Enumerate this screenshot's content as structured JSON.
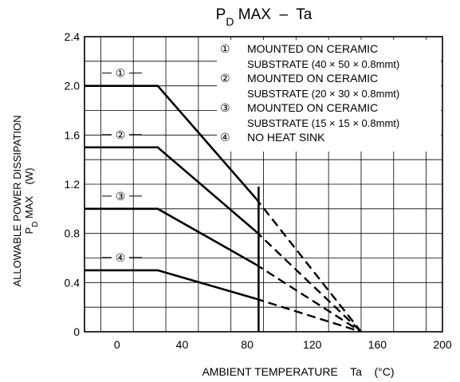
{
  "chart_data": {
    "type": "line",
    "title": {
      "main": "P",
      "sub": "D",
      "rest": " MAX  –  Ta"
    },
    "xlabel": "AMBIENT TEMPERATURE    Ta    (°C)",
    "ylabel": {
      "line1": "ALLOWABLE POWER DISSIPATION",
      "line2_main": "P",
      "line2_sub": "D",
      "line2_rest": " MAX    (W)"
    },
    "xlim": [
      -20,
      200
    ],
    "ylim": [
      0,
      2.4
    ],
    "x_ticks": [
      "0",
      "40",
      "80",
      "120",
      "160",
      "200"
    ],
    "x_tick_values": [
      0,
      40,
      80,
      120,
      160,
      200
    ],
    "y_ticks": [
      "0",
      "0.4",
      "0.8",
      "1.2",
      "1.6",
      "2.0",
      "2.4"
    ],
    "y_tick_values": [
      0,
      0.4,
      0.8,
      1.2,
      1.6,
      2.0,
      2.4
    ],
    "grid": true,
    "legend_position": "top-right",
    "legend": [
      {
        "marker": "①",
        "line1": "MOUNTED ON CERAMIC",
        "line2": "SUBSTRATE (40 × 50 × 0.8mmt)"
      },
      {
        "marker": "②",
        "line1": "MOUNTED ON CERAMIC",
        "line2": "SUBSTRATE (20 × 30 × 0.8mmt)"
      },
      {
        "marker": "③",
        "line1": "MOUNTED ON CERAMIC",
        "line2": "SUBSTRATE (15 × 15 × 0.8mmt)"
      },
      {
        "marker": "④",
        "line1": "NO HEAT SINK",
        "line2": ""
      }
    ],
    "series": [
      {
        "label": "①",
        "flat_value": 2.0,
        "knee_x": 25,
        "solid_end_x": 85,
        "solid_end_y": 1.09,
        "end_x": 150,
        "end_y": 0
      },
      {
        "label": "②",
        "flat_value": 1.5,
        "knee_x": 25,
        "solid_end_x": 85,
        "solid_end_y": 0.82,
        "end_x": 150,
        "end_y": 0
      },
      {
        "label": "③",
        "flat_value": 1.0,
        "knee_x": 25,
        "solid_end_x": 85,
        "solid_end_y": 0.55,
        "end_x": 150,
        "end_y": 0
      },
      {
        "label": "④",
        "flat_value": 0.5,
        "knee_x": 25,
        "solid_end_x": 85,
        "solid_end_y": 0.27,
        "end_x": 150,
        "end_y": 0
      }
    ],
    "vertical_marker_x": 87,
    "colors": {
      "line": "#000000",
      "grid": "#000000",
      "background": "#ffffff"
    }
  }
}
